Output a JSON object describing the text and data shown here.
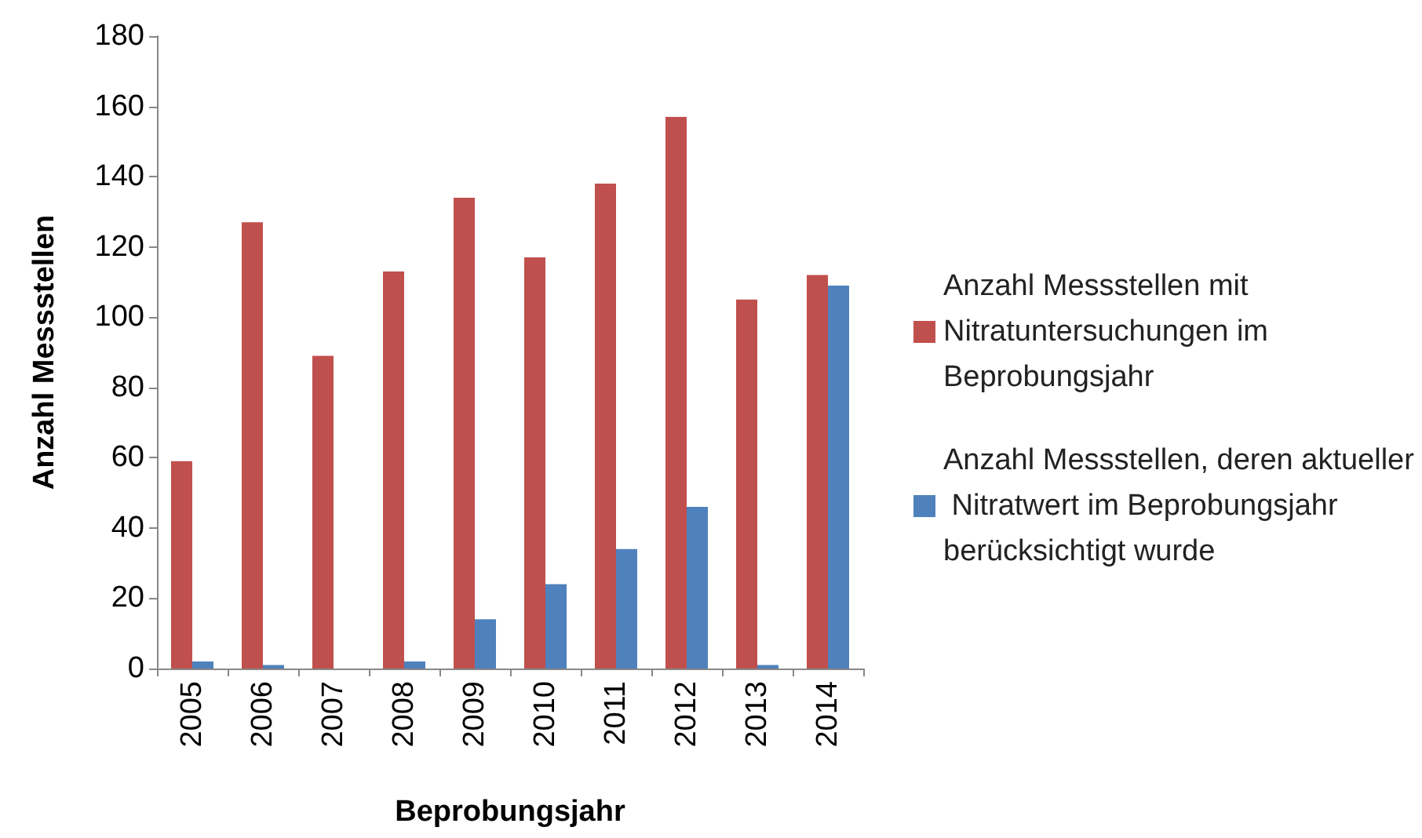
{
  "chart_data": {
    "type": "bar",
    "xlabel": "Beprobungsjahr",
    "ylabel": "Anzahl Messstellen",
    "categories": [
      "2005",
      "2006",
      "2007",
      "2008",
      "2009",
      "2010",
      "2011",
      "2012",
      "2013",
      "2014"
    ],
    "series": [
      {
        "name": "Anzahl Messstellen mit Nitratuntersuchungen im Beprobungsjahr",
        "color": "#c0504d",
        "values": [
          59,
          127,
          89,
          113,
          134,
          117,
          138,
          157,
          105,
          112
        ]
      },
      {
        "name": "Anzahl Messstellen, deren aktueller Nitratwert im Beprobungsjahr berücksichtigt wurde",
        "color": "#4f81bd",
        "values": [
          2,
          1,
          0,
          2,
          14,
          24,
          34,
          46,
          1,
          109
        ]
      }
    ],
    "ylim": [
      0,
      180
    ],
    "yticks": [
      0,
      20,
      40,
      60,
      80,
      100,
      120,
      140,
      160,
      180
    ],
    "grid": false,
    "legend": "right"
  }
}
